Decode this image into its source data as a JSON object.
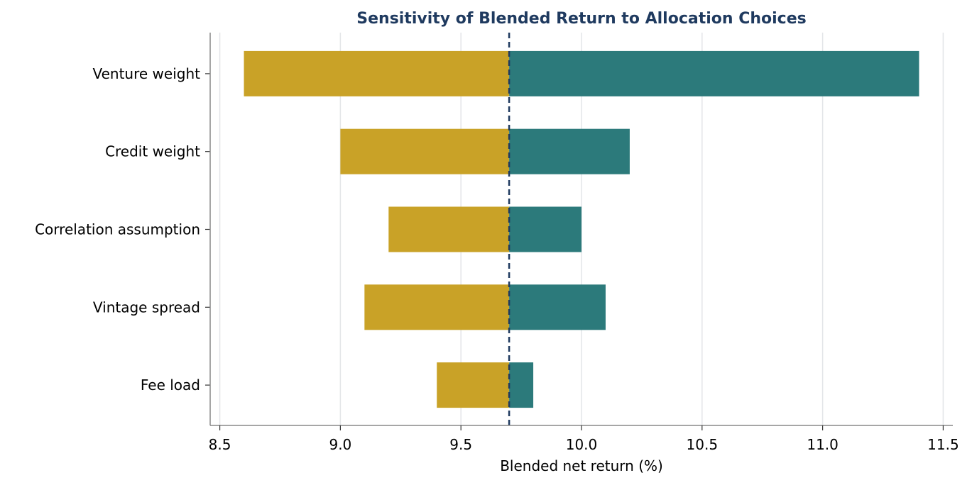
{
  "chart_data": {
    "type": "bar",
    "orientation": "horizontal",
    "style": "tornado",
    "title": "Sensitivity of Blended Return to Allocation Choices",
    "xlabel": "Blended net return (%)",
    "ylabel": "",
    "baseline": 9.7,
    "xlim": [
      8.46,
      11.54
    ],
    "xticks": [
      8.5,
      9.0,
      9.5,
      10.0,
      10.5,
      11.0,
      11.5
    ],
    "xtick_labels": [
      "8.5",
      "9.0",
      "9.5",
      "10.0",
      "10.5",
      "11.0",
      "11.5"
    ],
    "grid": "vertical",
    "categories": [
      "Venture weight",
      "Credit weight",
      "Correlation assumption",
      "Vintage spread",
      "Fee load"
    ],
    "series": [
      {
        "values": [
          8.6,
          9.0,
          9.2,
          9.1,
          9.4
        ],
        "color": "#c9a227"
      },
      {
        "values": [
          11.4,
          10.2,
          10.0,
          10.1,
          9.8
        ],
        "color": "#2c7a7b"
      }
    ],
    "colors": {
      "title": "#1f3a5f",
      "baseline": "#1f3a5f",
      "grid": "#e3e5e8",
      "axis": "#888888"
    }
  }
}
